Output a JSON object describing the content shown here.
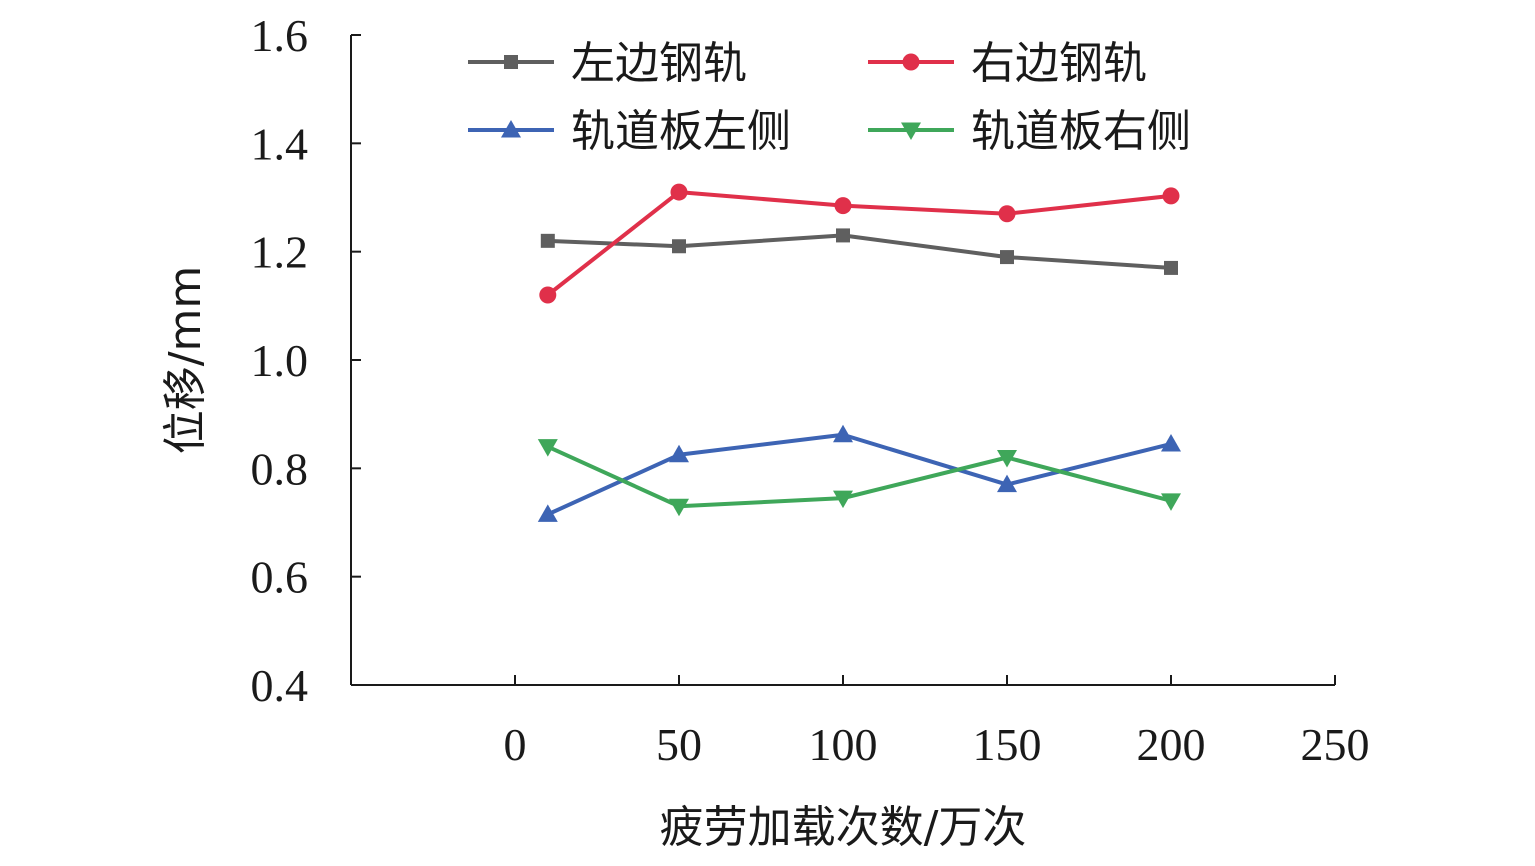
{
  "chart_data": {
    "type": "line",
    "xlabel": "疲劳加载次数/万次",
    "ylabel": "位移/mm",
    "xlim": [
      -50,
      250
    ],
    "ylim": [
      0.4,
      1.6
    ],
    "x_ticks": [
      "0",
      "50",
      "100",
      "150",
      "200",
      "250"
    ],
    "y_ticks": [
      "0.4",
      "0.6",
      "0.8",
      "1.0",
      "1.2",
      "1.4",
      "1.6"
    ],
    "grid": false,
    "legend_position": "top",
    "series": [
      {
        "name": "左边钢轨",
        "color": "#5f5f5f",
        "marker": "square",
        "x": [
          10,
          50,
          100,
          150,
          200
        ],
        "y": [
          1.22,
          1.21,
          1.23,
          1.19,
          1.17
        ]
      },
      {
        "name": "右边钢轨",
        "color": "#e0304a",
        "marker": "circle",
        "x": [
          10,
          50,
          100,
          150,
          200
        ],
        "y": [
          1.12,
          1.31,
          1.285,
          1.27,
          1.303
        ]
      },
      {
        "name": "轨道板左侧",
        "color": "#3d64b4",
        "marker": "triangle-up",
        "x": [
          10,
          50,
          100,
          150,
          200
        ],
        "y": [
          0.715,
          0.825,
          0.862,
          0.77,
          0.845
        ]
      },
      {
        "name": "轨道板右侧",
        "color": "#3fa75a",
        "marker": "triangle-down",
        "x": [
          10,
          50,
          100,
          150,
          200
        ],
        "y": [
          0.84,
          0.73,
          0.745,
          0.82,
          0.74
        ]
      }
    ]
  }
}
